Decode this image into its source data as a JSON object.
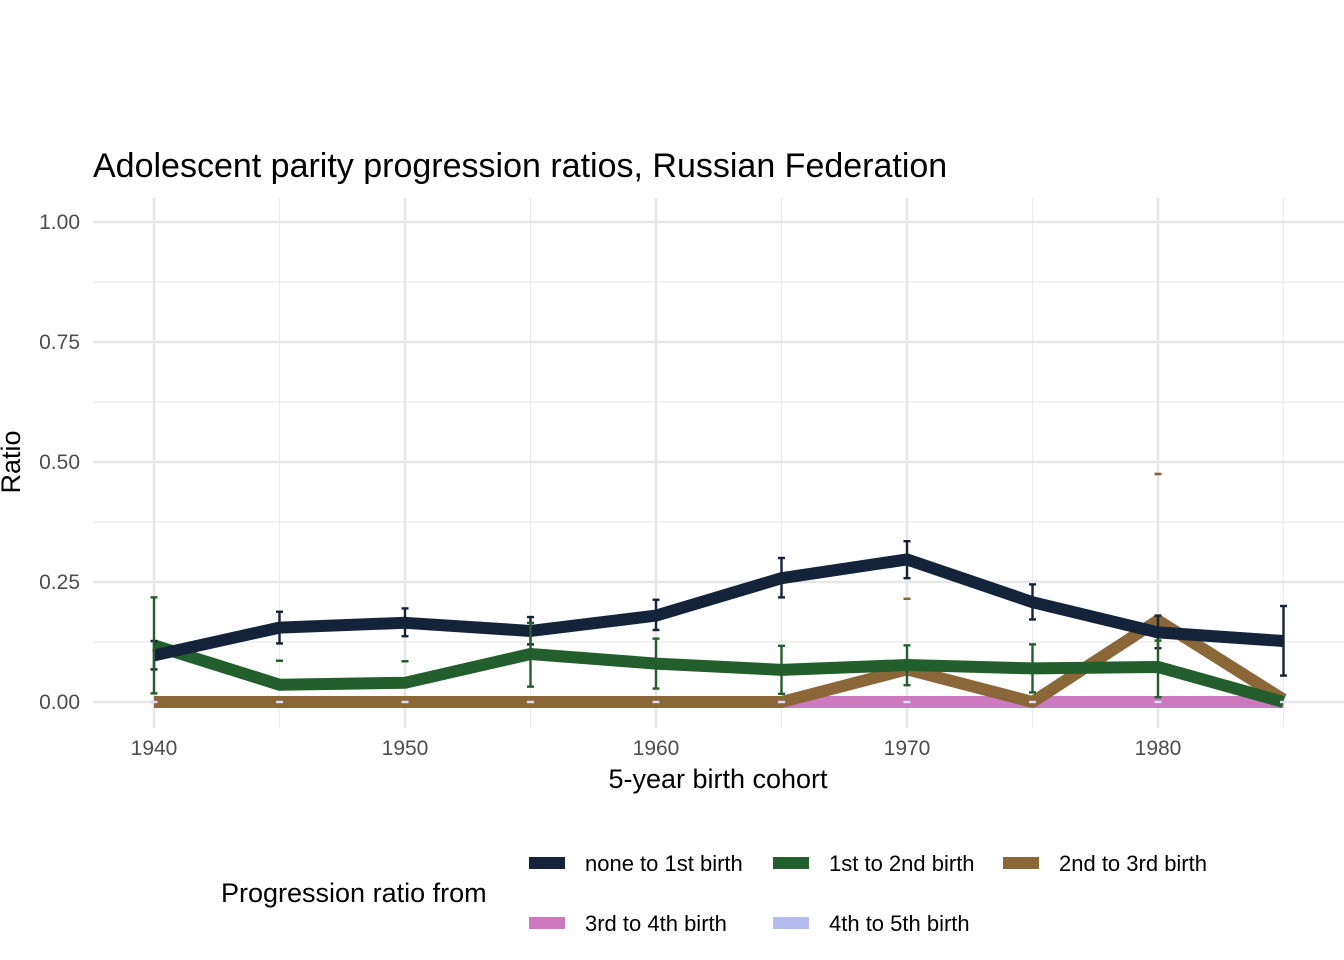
{
  "chart_data": {
    "type": "line",
    "title": "Adolescent parity progression ratios,  Russian Federation",
    "xlabel": "5-year birth cohort",
    "ylabel": "Ratio",
    "xlim": [
      1937.5,
      1987.5
    ],
    "ylim": [
      -0.05,
      1.05
    ],
    "x_ticks": [
      1940,
      1950,
      1960,
      1970,
      1980
    ],
    "x_tick_labels": [
      "1940",
      "1950",
      "1960",
      "1970",
      "1980"
    ],
    "y_ticks": [
      0,
      0.25,
      0.5,
      0.75,
      1.0
    ],
    "y_tick_labels": [
      "0.00",
      "0.25",
      "0.50",
      "0.75",
      "1.00"
    ],
    "grid": true,
    "legend_title": "Progression ratio from",
    "legend_position": "bottom",
    "x": [
      1940,
      1945,
      1950,
      1955,
      1960,
      1965,
      1970,
      1975,
      1980,
      1985
    ],
    "series": [
      {
        "name": "none to 1st birth",
        "color": "#15233a",
        "values": [
          0.097,
          0.155,
          0.165,
          0.148,
          0.18,
          0.258,
          0.297,
          0.208,
          0.145,
          0.127
        ],
        "err_low": [
          0.068,
          0.122,
          0.137,
          0.12,
          0.15,
          0.218,
          0.258,
          0.172,
          0.112,
          0.055
        ],
        "err_high": [
          0.127,
          0.188,
          0.195,
          0.177,
          0.213,
          0.3,
          0.335,
          0.245,
          0.18,
          0.2
        ]
      },
      {
        "name": "1st to 2nd birth",
        "color": "#235e2d",
        "values": [
          0.118,
          0.036,
          0.04,
          0.1,
          0.08,
          0.067,
          0.077,
          0.07,
          0.073,
          0.0
        ],
        "err_low": [
          0.018,
          0.086,
          0.085,
          0.032,
          0.028,
          0.017,
          0.035,
          0.02,
          0.01,
          0.0
        ],
        "err_high": [
          0.218,
          0.086,
          0.085,
          0.165,
          0.132,
          0.117,
          0.118,
          0.12,
          0.128,
          0.0
        ]
      },
      {
        "name": "2nd to 3rd birth",
        "color": "#8b6639",
        "values": [
          0,
          0,
          0,
          0,
          0,
          0,
          0.068,
          0,
          0.17,
          0.005
        ],
        "err_low": [
          0,
          0,
          0,
          0,
          0,
          0,
          0.215,
          0,
          0.475,
          0
        ],
        "err_high": [
          0,
          0,
          0,
          0,
          0,
          0,
          0.215,
          0,
          0.475,
          0
        ]
      },
      {
        "name": "3rd to 4th birth",
        "color": "#cc79bf",
        "values": [
          0,
          0,
          0,
          0,
          0,
          0,
          0,
          0,
          0,
          0
        ]
      },
      {
        "name": "4th to 5th birth",
        "color": "#b4bdee",
        "values": [
          0,
          0,
          0,
          0,
          0,
          0,
          0,
          0,
          0,
          0
        ]
      }
    ]
  }
}
